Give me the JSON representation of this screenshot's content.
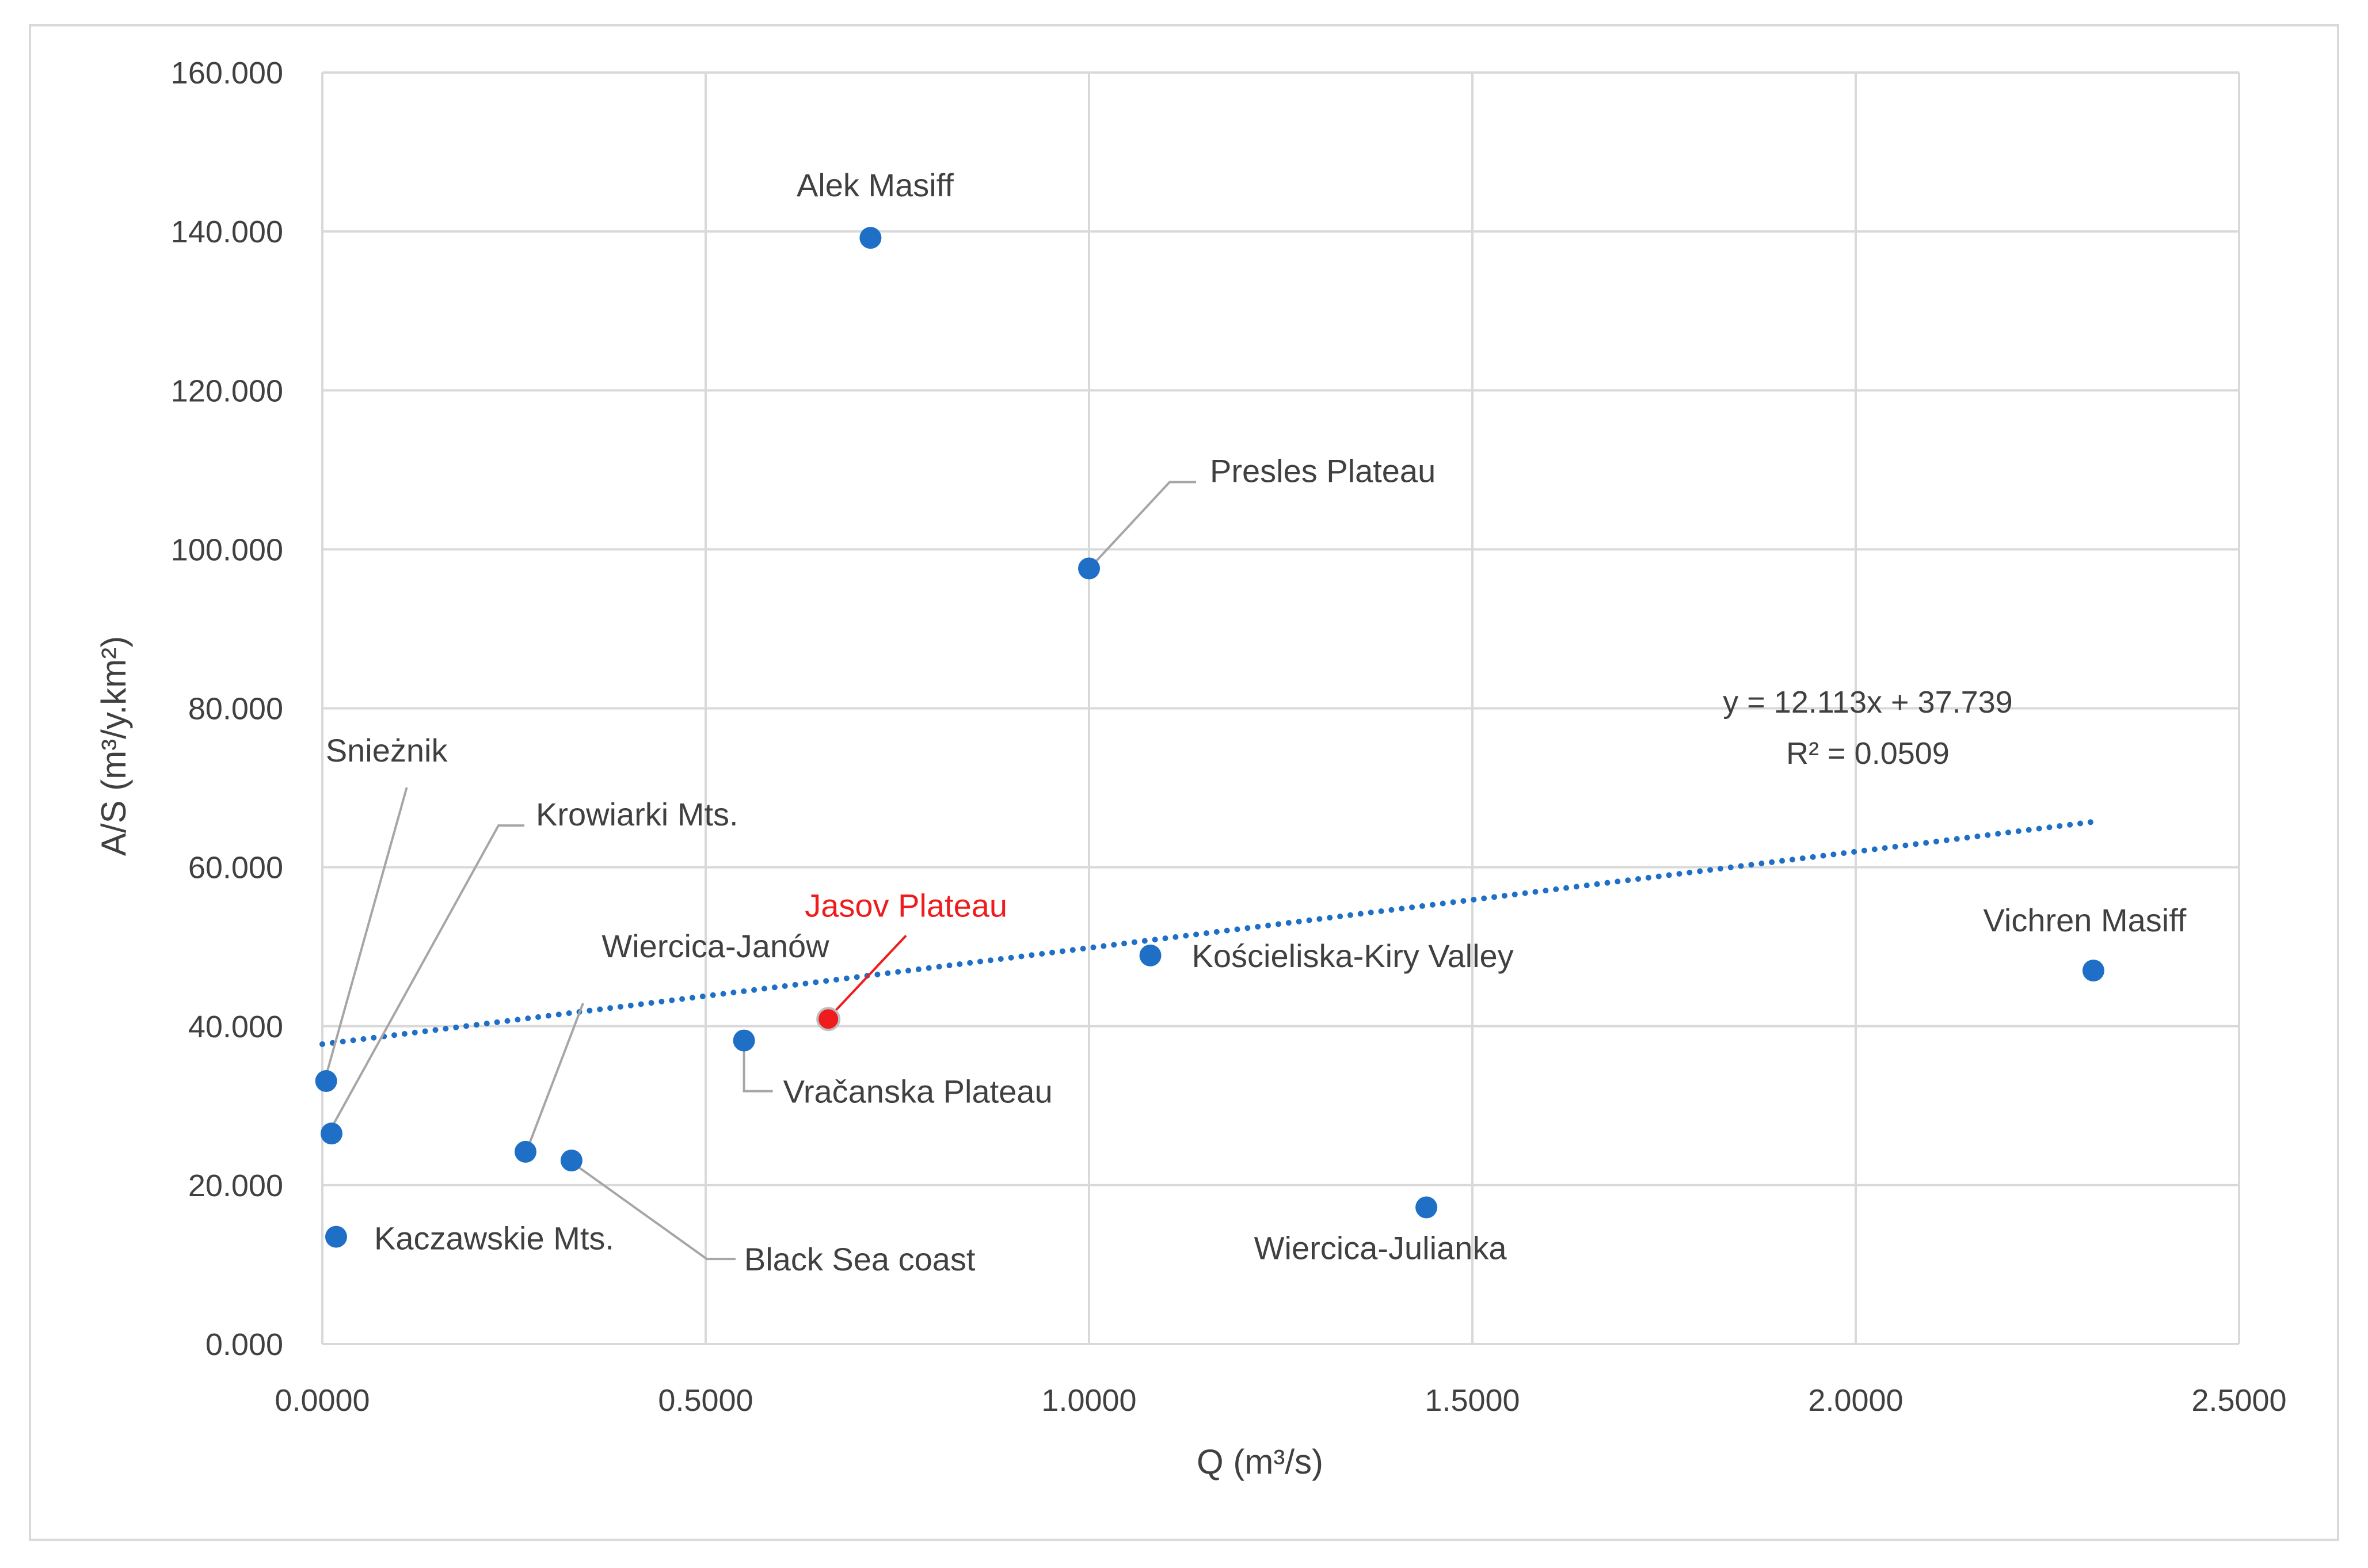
{
  "chart_data": {
    "type": "scatter",
    "xlabel": "Q (m³/s)",
    "ylabel": "A/S (m³/y.km²)",
    "xlim": [
      0,
      2.5
    ],
    "ylim": [
      0,
      160
    ],
    "x_ticks": [
      "0.0000",
      "0.5000",
      "1.0000",
      "1.5000",
      "2.0000",
      "2.5000"
    ],
    "y_ticks": [
      "0.000",
      "20.000",
      "40.000",
      "60.000",
      "80.000",
      "100.000",
      "120.000",
      "140.000",
      "160.000"
    ],
    "grid": true,
    "points": [
      {
        "label": "Alek Masiff",
        "x": 0.715,
        "y": 139.2,
        "highlight": false
      },
      {
        "label": "Presles Plateau",
        "x": 1.0,
        "y": 97.6,
        "highlight": false
      },
      {
        "label": "Snieżnik",
        "x": 0.005,
        "y": 33.1,
        "highlight": false
      },
      {
        "label": "Krowiarki Mts.",
        "x": 0.012,
        "y": 26.5,
        "highlight": false
      },
      {
        "label": "Kaczawskie Mts.",
        "x": 0.018,
        "y": 13.5,
        "highlight": false
      },
      {
        "label": "Wiercica-Janów",
        "x": 0.265,
        "y": 24.2,
        "highlight": false
      },
      {
        "label": "Black Sea coast",
        "x": 0.325,
        "y": 23.1,
        "highlight": false
      },
      {
        "label": "Vračanska Plateau",
        "x": 0.55,
        "y": 38.2,
        "highlight": false
      },
      {
        "label": "Jasov Plateau",
        "x": 0.66,
        "y": 40.9,
        "highlight": true
      },
      {
        "label": "Kościeliska-Kiry Valley",
        "x": 1.08,
        "y": 48.9,
        "highlight": false
      },
      {
        "label": "Wiercica-Julianka",
        "x": 1.44,
        "y": 17.2,
        "highlight": false
      },
      {
        "label": "Vichren Masiff",
        "x": 2.31,
        "y": 47.0,
        "highlight": false
      }
    ],
    "trendline": {
      "slope": 12.113,
      "intercept": 37.739,
      "x_range": [
        0,
        2.31
      ],
      "equation": "y = 12.113x + 37.739",
      "r2": "R² = 0.0509",
      "style": "dotted"
    },
    "colors": {
      "point": "#1f6fc6",
      "highlight_point": "#ee1c1c",
      "highlight_label": "#ee1c1c",
      "trendline": "#1f6fc6",
      "grid": "#d9d9d9",
      "text": "#404040",
      "leader": "#a6a6a6"
    }
  }
}
